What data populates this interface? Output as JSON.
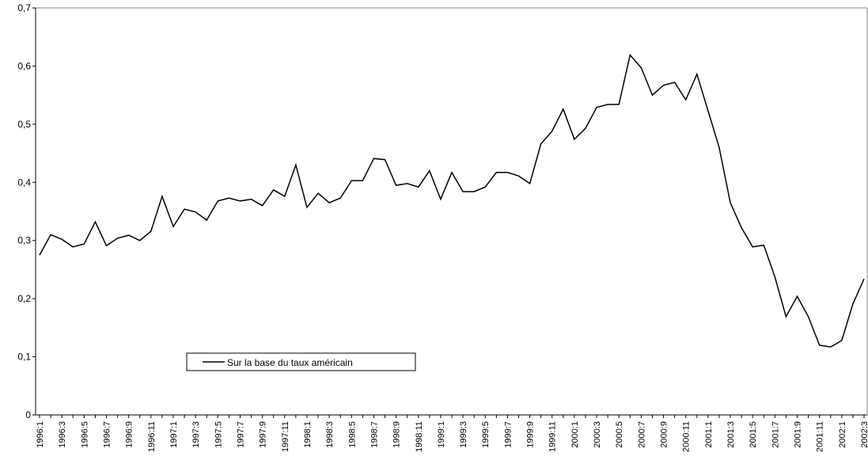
{
  "chart_data": {
    "type": "line",
    "categories": [
      "1996:1",
      null,
      "1996:3",
      null,
      "1996:5",
      null,
      "1996:7",
      null,
      "1996:9",
      null,
      "1996:11",
      null,
      "1997:1",
      null,
      "1997:3",
      null,
      "1997:5",
      null,
      "1997:7",
      null,
      "1997:9",
      null,
      "1997:11",
      null,
      "1998:1",
      null,
      "1998:3",
      null,
      "1998:5",
      null,
      "1998:7",
      null,
      "1998:9",
      null,
      "1998:11",
      null,
      "1999:1",
      null,
      "1999:3",
      null,
      "1999:5",
      null,
      "1999:7",
      null,
      "1999:9",
      null,
      "1999:11",
      null,
      "2000:1",
      null,
      "2000:3",
      null,
      "2000:5",
      null,
      "2000:7",
      null,
      "2000:9",
      null,
      "2000:11",
      null,
      "2001:1",
      null,
      "2001:3",
      null,
      "2001:5",
      null,
      "2001:7",
      null,
      "2001:9",
      null,
      "2001:11",
      null,
      "2002:1",
      null,
      "2002:3"
    ],
    "series": [
      {
        "name": "Sur la base du taux américain",
        "color": "#000000",
        "values": [
          0.275,
          0.31,
          0.302,
          0.289,
          0.294,
          0.332,
          0.291,
          0.304,
          0.309,
          0.3,
          0.316,
          0.376,
          0.324,
          0.354,
          0.349,
          0.335,
          0.368,
          0.373,
          0.368,
          0.371,
          0.36,
          0.387,
          0.376,
          0.43,
          0.357,
          0.381,
          0.365,
          0.373,
          0.403,
          0.403,
          0.441,
          0.439,
          0.395,
          0.398,
          0.392,
          0.42,
          0.371,
          0.417,
          0.384,
          0.384,
          0.392,
          0.417,
          0.417,
          0.411,
          0.398,
          0.466,
          0.488,
          0.526,
          0.474,
          0.493,
          0.529,
          0.534,
          0.534,
          0.619,
          0.597,
          0.55,
          0.567,
          0.572,
          0.542,
          0.586,
          0.523,
          0.46,
          0.365,
          0.322,
          0.289,
          0.292,
          0.237,
          0.169,
          0.204,
          0.169,
          0.12,
          0.117,
          0.128,
          0.191,
          0.234
        ]
      }
    ],
    "ylim": [
      0,
      0.7
    ],
    "yticks": [
      0,
      {
        "value": 0.1,
        "label": "0,1"
      },
      {
        "value": 0.2,
        "label": "0,2"
      },
      {
        "value": 0.3,
        "label": "0,3"
      },
      {
        "value": 0.4,
        "label": "0,4"
      },
      {
        "value": 0.5,
        "label": "0,5"
      },
      {
        "value": 0.6,
        "label": "0,6"
      },
      {
        "value": 0.7,
        "label": "0,7"
      }
    ],
    "grid": false
  }
}
